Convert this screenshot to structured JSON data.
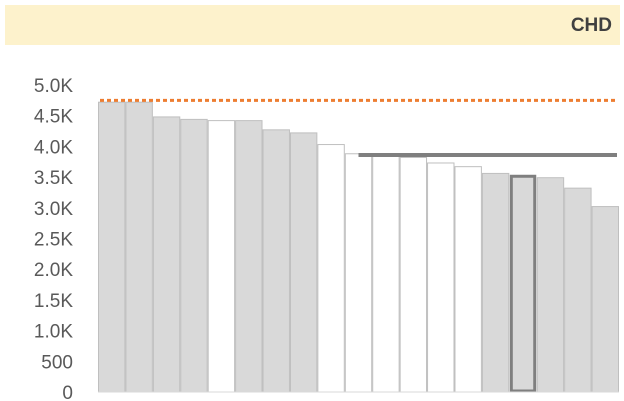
{
  "chart_data": {
    "type": "bar",
    "title": "CHD",
    "xlabel": "",
    "ylabel": "",
    "ylim": [
      0,
      5000
    ],
    "y_ticks": [
      {
        "value": 0,
        "label": "0"
      },
      {
        "value": 500,
        "label": "500"
      },
      {
        "value": 1000,
        "label": "1.0K"
      },
      {
        "value": 1500,
        "label": "1.5K"
      },
      {
        "value": 2000,
        "label": "2.0K"
      },
      {
        "value": 2500,
        "label": "2.5K"
      },
      {
        "value": 3000,
        "label": "3.0K"
      },
      {
        "value": 3500,
        "label": "3.5K"
      },
      {
        "value": 4000,
        "label": "4.0K"
      },
      {
        "value": 4500,
        "label": "4.5K"
      },
      {
        "value": 5000,
        "label": "5.0K"
      }
    ],
    "values": [
      4720,
      4720,
      4480,
      4440,
      4420,
      4420,
      4270,
      4220,
      4030,
      3880,
      3850,
      3820,
      3730,
      3670,
      3560,
      3530,
      3490,
      3320,
      3020
    ],
    "bar_fills": [
      "#d9d9d9",
      "#d9d9d9",
      "#d9d9d9",
      "#d9d9d9",
      "#ffffff",
      "#d9d9d9",
      "#d9d9d9",
      "#d9d9d9",
      "#ffffff",
      "#ffffff",
      "#ffffff",
      "#ffffff",
      "#ffffff",
      "#ffffff",
      "#d9d9d9",
      "#d9d9d9",
      "#d9d9d9",
      "#d9d9d9",
      "#d9d9d9"
    ],
    "highlight_index": 15,
    "reference_lines": [
      {
        "value": 4750,
        "style": "dotted",
        "color": "#ed7d31"
      },
      {
        "value": 3860,
        "style": "solid",
        "color": "#7f7f7f",
        "start_index": 10
      }
    ],
    "grid": false,
    "legend": "none"
  }
}
